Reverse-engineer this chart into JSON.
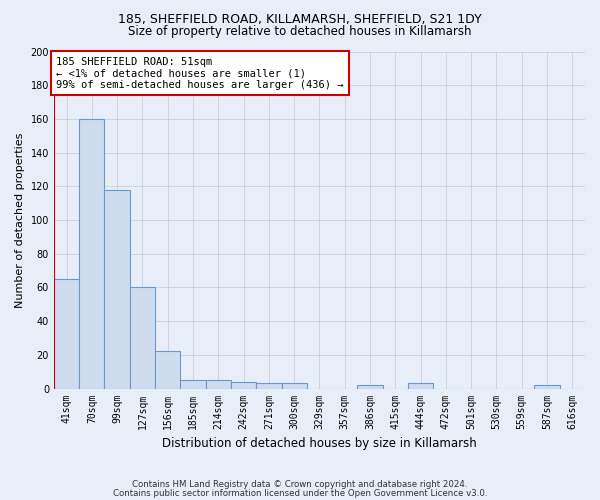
{
  "title1": "185, SHEFFIELD ROAD, KILLAMARSH, SHEFFIELD, S21 1DY",
  "title2": "Size of property relative to detached houses in Killamarsh",
  "xlabel": "Distribution of detached houses by size in Killamarsh",
  "ylabel": "Number of detached properties",
  "footnote1": "Contains HM Land Registry data © Crown copyright and database right 2024.",
  "footnote2": "Contains public sector information licensed under the Open Government Licence v3.0.",
  "bin_labels": [
    "41sqm",
    "70sqm",
    "99sqm",
    "127sqm",
    "156sqm",
    "185sqm",
    "214sqm",
    "242sqm",
    "271sqm",
    "300sqm",
    "329sqm",
    "357sqm",
    "386sqm",
    "415sqm",
    "444sqm",
    "472sqm",
    "501sqm",
    "530sqm",
    "559sqm",
    "587sqm",
    "616sqm"
  ],
  "bin_values": [
    65,
    160,
    118,
    60,
    22,
    5,
    5,
    4,
    3,
    3,
    0,
    0,
    2,
    0,
    3,
    0,
    0,
    0,
    0,
    2,
    0
  ],
  "bar_color": "#cfdcef",
  "bar_edge_color": "#6699cc",
  "bar_linewidth": 0.8,
  "ylim": [
    0,
    200
  ],
  "yticks": [
    0,
    20,
    40,
    60,
    80,
    100,
    120,
    140,
    160,
    180,
    200
  ],
  "annotation_line1": "185 SHEFFIELD ROAD: 51sqm",
  "annotation_line2": "← <1% of detached houses are smaller (1)",
  "annotation_line3": "99% of semi-detached houses are larger (436) →",
  "vline_color": "#cc0000",
  "annotation_box_color": "#ffffff",
  "annotation_box_edge": "#cc0000",
  "background_color": "#e8eef8",
  "grid_color": "#ccccdd",
  "title1_fontsize": 9.0,
  "title2_fontsize": 8.5,
  "ylabel_fontsize": 8.0,
  "xlabel_fontsize": 8.5,
  "footnote_fontsize": 6.2,
  "tick_fontsize": 7.0,
  "annot_fontsize": 7.5
}
